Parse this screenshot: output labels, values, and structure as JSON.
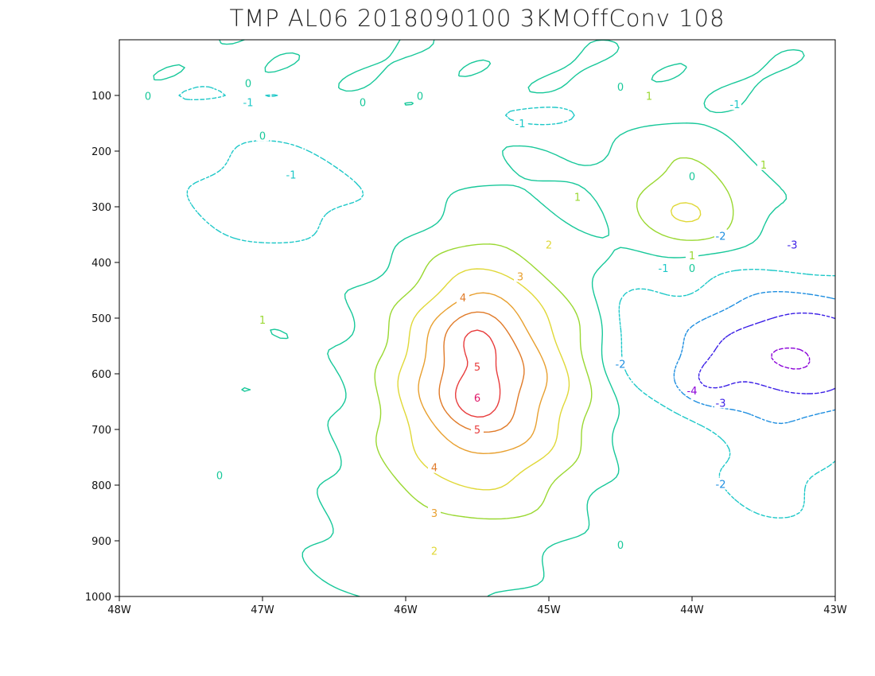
{
  "chart_data": {
    "type": "contour",
    "title": "TMP AL06 2018090100 3KMOffConv 108",
    "xlabel": "",
    "ylabel": "",
    "x_ticks": [
      "48W",
      "47W",
      "46W",
      "45W",
      "44W",
      "43W"
    ],
    "x_tick_values": [
      -48,
      -47,
      -46,
      -45,
      -44,
      -43
    ],
    "y_ticks": [
      "100",
      "200",
      "300",
      "400",
      "500",
      "600",
      "700",
      "800",
      "900",
      "1000"
    ],
    "y_tick_values": [
      100,
      200,
      300,
      400,
      500,
      600,
      700,
      800,
      900,
      1000
    ],
    "xlim": [
      -48,
      -43
    ],
    "ylim": [
      0,
      1000
    ],
    "y_reversed": true,
    "grid": false,
    "contour_levels": [
      -4,
      -3,
      -2,
      -1,
      0,
      1,
      2,
      3,
      4,
      5
    ],
    "level_colors": {
      "-4": "#8a00d8",
      "-3": "#3a1ee6",
      "-2": "#1e8ee0",
      "-1": "#1ec8c8",
      "0": "#18c89a",
      "1": "#9ad832",
      "2": "#e0d838",
      "3": "#e8a030",
      "4": "#e07a28",
      "5": "#e83c3c"
    },
    "features": [
      {
        "type": "maximum",
        "level": 5,
        "x": -45.5,
        "y": 520
      },
      {
        "type": "maximum",
        "level": 6,
        "x": -45.5,
        "y": 640
      },
      {
        "type": "maximum",
        "level": 2,
        "x": -44.0,
        "y": 320
      },
      {
        "type": "minimum",
        "level": -4,
        "x": -43.8,
        "y": 600
      },
      {
        "type": "minimum",
        "level": -3,
        "x": -43.5,
        "y": 550
      }
    ],
    "contour_labels": [
      {
        "text": "-1",
        "level": -1,
        "x": -46.8,
        "y": 242
      },
      {
        "text": "0",
        "level": 0,
        "x": -47.0,
        "y": 172
      },
      {
        "text": "1",
        "level": 1,
        "x": -44.8,
        "y": 282
      },
      {
        "text": "1",
        "level": 1,
        "x": -47.0,
        "y": 503
      },
      {
        "text": "2",
        "level": 2,
        "x": -45.0,
        "y": 368
      },
      {
        "text": "2",
        "level": 2,
        "x": -45.8,
        "y": 918
      },
      {
        "text": "3",
        "level": 3,
        "x": -45.2,
        "y": 425
      },
      {
        "text": "3",
        "level": 3,
        "x": -45.8,
        "y": 850
      },
      {
        "text": "4",
        "level": 4,
        "x": -45.6,
        "y": 463
      },
      {
        "text": "4",
        "level": 4,
        "x": -45.8,
        "y": 768
      },
      {
        "text": "5",
        "level": 5,
        "x": -45.5,
        "y": 587
      },
      {
        "text": "5",
        "level": 5,
        "x": -45.5,
        "y": 700
      },
      {
        "text": "6",
        "level": 6,
        "x": -45.5,
        "y": 643
      },
      {
        "text": "-2",
        "level": -2,
        "x": -44.5,
        "y": 582
      },
      {
        "text": "-2",
        "level": -2,
        "x": -43.8,
        "y": 352
      },
      {
        "text": "-2",
        "level": -2,
        "x": -43.8,
        "y": 798
      },
      {
        "text": "-3",
        "level": -3,
        "x": -43.3,
        "y": 368
      },
      {
        "text": "-3",
        "level": -3,
        "x": -43.8,
        "y": 652
      },
      {
        "text": "-4",
        "level": -4,
        "x": -44.0,
        "y": 630
      },
      {
        "text": "-1",
        "level": -1,
        "x": -44.2,
        "y": 410
      },
      {
        "text": "0",
        "level": 0,
        "x": -44.0,
        "y": 245
      },
      {
        "text": "0",
        "level": 0,
        "x": -44.0,
        "y": 410
      },
      {
        "text": "1",
        "level": 1,
        "x": -43.5,
        "y": 224
      },
      {
        "text": "1",
        "level": 1,
        "x": -44.0,
        "y": 387
      },
      {
        "text": "0",
        "level": 0,
        "x": -47.3,
        "y": 782
      },
      {
        "text": "0",
        "level": 0,
        "x": -44.5,
        "y": 907
      },
      {
        "text": "-1",
        "level": -1,
        "x": -45.2,
        "y": 150
      },
      {
        "text": "0",
        "level": 0,
        "x": -47.8,
        "y": 101
      },
      {
        "text": "0",
        "level": 0,
        "x": -47.1,
        "y": 78
      },
      {
        "text": "-1",
        "level": -1,
        "x": -47.1,
        "y": 112
      },
      {
        "text": "0",
        "level": 0,
        "x": -46.3,
        "y": 112
      },
      {
        "text": "0",
        "level": 0,
        "x": -45.9,
        "y": 101
      },
      {
        "text": "0",
        "level": 0,
        "x": -44.5,
        "y": 84
      },
      {
        "text": "1",
        "level": 1,
        "x": -44.3,
        "y": 101
      },
      {
        "text": "-1",
        "level": -1,
        "x": -43.7,
        "y": 116
      }
    ]
  }
}
